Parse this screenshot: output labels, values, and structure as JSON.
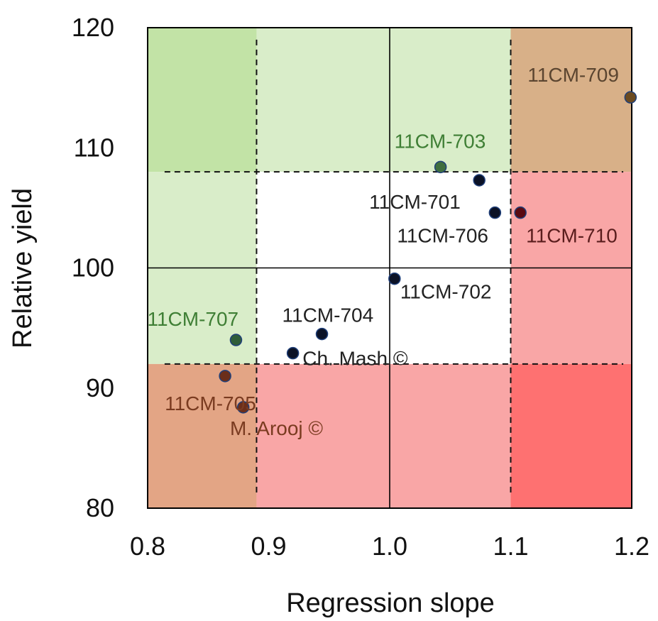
{
  "chart_data": {
    "type": "scatter",
    "title": "",
    "xlabel": "Regression slope",
    "ylabel": "Relative yield",
    "xlim": [
      0.8,
      1.2
    ],
    "ylim": [
      80,
      120
    ],
    "xticks": [
      "0.8",
      "0.9",
      "1.0",
      "1.1",
      "1.2"
    ],
    "yticks": [
      "80",
      "90",
      "100",
      "110",
      "120"
    ],
    "grid": false,
    "reference_lines": {
      "solid_x": 1.0,
      "solid_y": 100,
      "dashed_x": [
        0.89,
        1.1
      ],
      "dashed_y": [
        92,
        108
      ]
    },
    "zones": [
      {
        "x": [
          0.8,
          0.89
        ],
        "y": [
          108,
          120
        ],
        "color": "#c2e3a6"
      },
      {
        "x": [
          0.89,
          1.1
        ],
        "y": [
          108,
          120
        ],
        "color": "#d9edc9"
      },
      {
        "x": [
          1.1,
          1.2
        ],
        "y": [
          108,
          120
        ],
        "color": "#d8b088"
      },
      {
        "x": [
          0.8,
          0.89
        ],
        "y": [
          92,
          108
        ],
        "color": "#d9edc9"
      },
      {
        "x": [
          1.1,
          1.2
        ],
        "y": [
          92,
          108
        ],
        "color": "#f9a6a6"
      },
      {
        "x": [
          0.8,
          0.89
        ],
        "y": [
          80,
          92
        ],
        "color": "#e3a585"
      },
      {
        "x": [
          0.89,
          1.1
        ],
        "y": [
          80,
          92
        ],
        "color": "#f9a6a6"
      },
      {
        "x": [
          1.1,
          1.2
        ],
        "y": [
          80,
          92
        ],
        "color": "#fe7171"
      }
    ],
    "points": [
      {
        "label": "11CM-709",
        "x": 1.199,
        "y": 114.2,
        "color": "#6b4a20",
        "label_color": "#5b4530"
      },
      {
        "label": "11CM-703",
        "x": 1.042,
        "y": 108.4,
        "color": "#3f6e3f",
        "label_color": "#3f7f35"
      },
      {
        "label": "11CM-701",
        "x": 1.074,
        "y": 107.3,
        "color": "#0b1226",
        "label_color": "#222222"
      },
      {
        "label": "11CM-706",
        "x": 1.087,
        "y": 104.6,
        "color": "#0b1226",
        "label_color": "#222222"
      },
      {
        "label": "11CM-710",
        "x": 1.108,
        "y": 104.6,
        "color": "#5a0a12",
        "label_color": "#5a1d1d"
      },
      {
        "label": "11CM-702",
        "x": 1.004,
        "y": 99.1,
        "color": "#0b1226",
        "label_color": "#222222"
      },
      {
        "label": "11CM-704",
        "x": 0.944,
        "y": 94.5,
        "color": "#0b1226",
        "label_color": "#222222"
      },
      {
        "label": "",
        "x": 0.92,
        "y": 92.9,
        "color": "#0b1226",
        "label_color": "#222222"
      },
      {
        "label": "11CM-707",
        "x": 0.873,
        "y": 94.0,
        "color": "#2f5d3a",
        "label_color": "#3f7f35"
      },
      {
        "label": "11CM-705",
        "x": 0.864,
        "y": 91.0,
        "color": "#6b2e1a",
        "label_color": "#7a3b20"
      },
      {
        "label": "",
        "x": 0.879,
        "y": 88.4,
        "color": "#6b2e1a",
        "label_color": "#7a3b20"
      }
    ],
    "annotations": [
      {
        "text": "Ch. Mash ©",
        "x": 0.928,
        "y": 92.6,
        "color": "#222222"
      },
      {
        "text": "M. Arooj ©",
        "x": 0.868,
        "y": 86.8,
        "color": "#7a3b20"
      }
    ]
  }
}
